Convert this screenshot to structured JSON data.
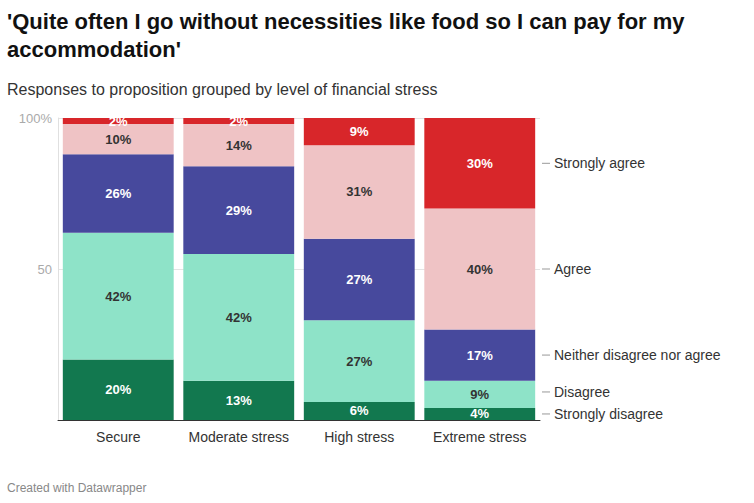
{
  "chart_data": {
    "type": "bar",
    "title": "'Quite often I go without necessities like food so I can pay for my accommodation'",
    "subtitle": "Responses to proposition grouped by level of financial stress",
    "footer": "Created with Datawrapper",
    "categories": [
      "Secure",
      "Moderate stress",
      "High stress",
      "Extreme stress"
    ],
    "series": [
      {
        "name": "Strongly disagree",
        "color": "#12784f",
        "values": [
          20,
          13,
          6,
          4
        ],
        "value_labels": [
          "20%",
          "13%",
          "6%",
          "4%"
        ]
      },
      {
        "name": "Disagree",
        "color": "#8ee3c8",
        "values": [
          42,
          42,
          27,
          9
        ],
        "value_labels": [
          "42%",
          "42%",
          "27%",
          "9%"
        ]
      },
      {
        "name": "Neither disagree nor agree",
        "color": "#47499d",
        "values": [
          26,
          29,
          27,
          17
        ],
        "value_labels": [
          "26%",
          "29%",
          "27%",
          "17%"
        ]
      },
      {
        "name": "Agree",
        "color": "#efc3c5",
        "values": [
          10,
          14,
          31,
          40
        ],
        "value_labels": [
          "10%",
          "14%",
          "31%",
          "40%"
        ]
      },
      {
        "name": "Strongly agree",
        "color": "#d8262a",
        "values": [
          2,
          2,
          9,
          30
        ],
        "value_labels": [
          "2%",
          "2%",
          "9%",
          "30%"
        ]
      }
    ],
    "ylim": [
      0,
      100
    ],
    "yticks": [
      50,
      {
        "value": 100,
        "label": "100%"
      }
    ],
    "grid": true,
    "stacked": true,
    "data_labels": true,
    "legend": "right"
  }
}
